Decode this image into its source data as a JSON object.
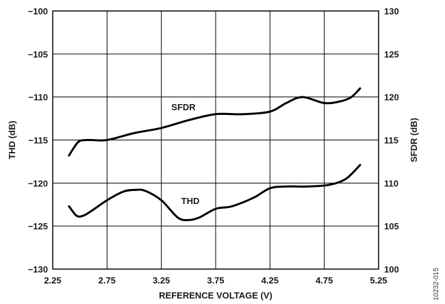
{
  "chart_data": {
    "type": "line",
    "xlabel": "REFERENCE VOLTAGE (V)",
    "ylabel": "THD (dB)",
    "y2label": "SFDR (dB)",
    "xlim": [
      2.25,
      5.25
    ],
    "ylim": [
      -130,
      -100
    ],
    "y2lim": [
      100,
      130
    ],
    "xticks": [
      "2.25",
      "2.75",
      "3.25",
      "3.75",
      "4.25",
      "4.75",
      "5.25"
    ],
    "yticks": [
      "−130",
      "−125",
      "−120",
      "−115",
      "−110",
      "−105",
      "−100"
    ],
    "y2ticks": [
      "100",
      "105",
      "110",
      "115",
      "120",
      "125",
      "130"
    ],
    "grid": true,
    "figure_id": "10232-015",
    "series": [
      {
        "name": "SFDR",
        "axis": "right",
        "x": [
          2.4,
          2.45,
          2.5,
          2.6,
          2.75,
          3.0,
          3.25,
          3.5,
          3.75,
          4.0,
          4.25,
          4.4,
          4.55,
          4.75,
          4.9,
          5.0,
          5.08
        ],
        "values": [
          113.2,
          114.2,
          114.9,
          115.0,
          115.0,
          115.8,
          116.4,
          117.3,
          118.0,
          118.0,
          118.3,
          119.3,
          120.0,
          119.3,
          119.5,
          120.0,
          121.0
        ]
      },
      {
        "name": "THD",
        "axis": "left",
        "x": [
          2.4,
          2.47,
          2.53,
          2.6,
          2.75,
          2.9,
          3.0,
          3.1,
          3.25,
          3.4,
          3.5,
          3.6,
          3.75,
          3.9,
          4.1,
          4.25,
          4.4,
          4.6,
          4.8,
          4.95,
          5.08
        ],
        "values": [
          -122.7,
          -123.8,
          -123.8,
          -123.3,
          -122.0,
          -121.0,
          -120.8,
          -120.9,
          -122.0,
          -124.0,
          -124.3,
          -124.0,
          -123.0,
          -122.7,
          -121.7,
          -120.6,
          -120.4,
          -120.4,
          -120.2,
          -119.5,
          -117.9
        ]
      }
    ]
  }
}
